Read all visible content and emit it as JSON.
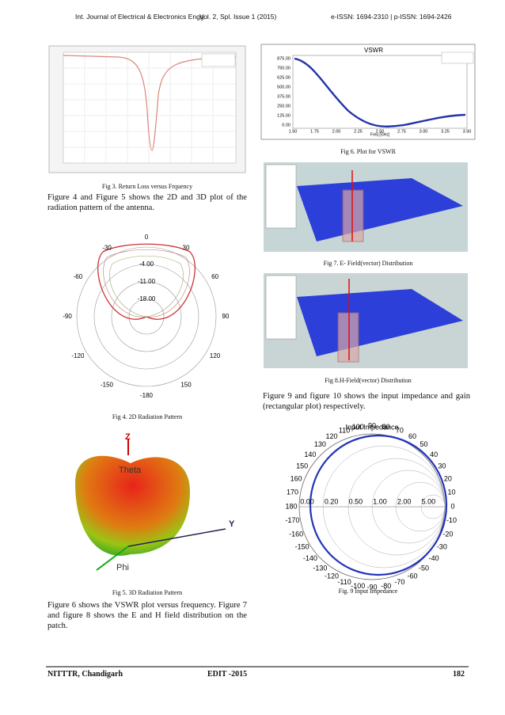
{
  "header": {
    "journal": "Int. Journal of Electrical & Electronics Engg.",
    "volume": "Vol. 2, Spl. Issue 1 (2015)",
    "issn": "e-ISSN: 1694-2310 | p-ISSN: 1694-2426"
  },
  "left": {
    "fig3_caption": "Fig 3. Return Loss versus Frquency",
    "para1": "Figure 4 and Figure 5 shows the 2D and 3D plot of the radiation pattern of the antenna.",
    "fig4": {
      "caption": "Fig 4. 2D Radiation Pattern",
      "angles": [
        "0",
        "30",
        "60",
        "90",
        "120",
        "150",
        "-180",
        "-150",
        "-120",
        "-90",
        "-60",
        "-30"
      ],
      "rings": [
        "-4.00",
        "-11.00",
        "-18.00"
      ]
    },
    "fig5": {
      "caption": "Fig 5. 3D Radiation Pattern",
      "z": "Z",
      "theta": "Theta",
      "y": "Y",
      "phi": "Phi"
    },
    "para2": "Figure 6 shows the VSWR plot versus frequency. Figure 7 and figure 8 shows the E and H field distribution on the patch."
  },
  "right": {
    "fig6": {
      "title": "VSWR",
      "caption": "Fig 6. Plot for VSWR",
      "xlabel": "Freq [GHz]",
      "yticks": [
        "875.00",
        "750.00",
        "625.00",
        "500.00",
        "375.00",
        "250.00",
        "125.00",
        "0.00"
      ],
      "xticks": [
        "1.50",
        "1.75",
        "2.00",
        "2.25",
        "2.50",
        "2.75",
        "3.00",
        "3.25",
        "3.50"
      ]
    },
    "fig7_caption": "Fig 7. E- Field(vector) Distribution",
    "fig8_caption": "Fig 8.H-Field(vector) Distribution",
    "para3": "Figure 9 and figure 10 shows the input impedance and gain (rectangular plot) respectively.",
    "fig9": {
      "title": "Input Impedance",
      "caption": "Fig. 9 Input Impedance",
      "angles": [
        "0",
        "10",
        "20",
        "30",
        "40",
        "50",
        "60",
        "70",
        "80",
        "90",
        "100",
        "110",
        "120",
        "130",
        "140",
        "150",
        "160",
        "170",
        "180",
        "-10",
        "-20",
        "-30",
        "-40",
        "-50",
        "-60",
        "-70",
        "-80",
        "-90",
        "-100",
        "-110",
        "-120",
        "-130",
        "-140",
        "-150",
        "-160",
        "-170"
      ],
      "real": [
        "0.00",
        "0.20",
        "0.50",
        "1.00",
        "2.00",
        "5.00"
      ]
    }
  },
  "footer": {
    "left": "NITTTR, Chandigarh",
    "center": "EDIT -2015",
    "page": "182"
  }
}
